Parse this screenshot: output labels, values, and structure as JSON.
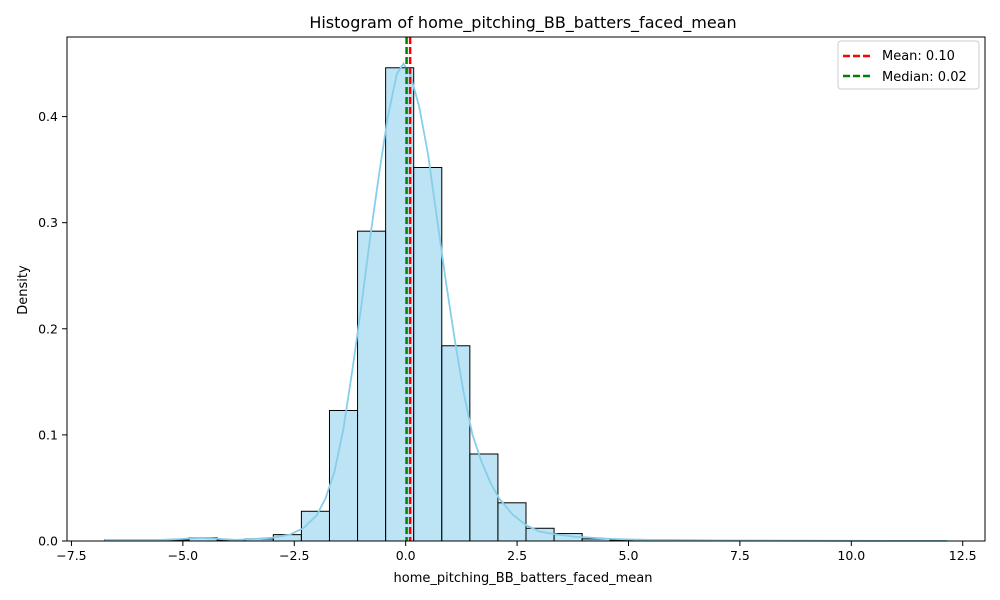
{
  "chart_data": {
    "type": "histogram",
    "title": "Histogram of home_pitching_BB_batters_faced_mean",
    "xlabel": "home_pitching_BB_batters_faced_mean",
    "ylabel": "Density",
    "xlim": [
      -7.6,
      13.0
    ],
    "ylim": [
      0,
      0.475
    ],
    "x_ticks": [
      -7.5,
      -5.0,
      -2.5,
      0.0,
      2.5,
      5.0,
      7.5,
      10.0,
      12.5
    ],
    "x_tick_labels": [
      "−7.5",
      "−5.0",
      "−2.5",
      "0.0",
      "2.5",
      "5.0",
      "7.5",
      "10.0",
      "12.5"
    ],
    "y_ticks": [
      0.0,
      0.1,
      0.2,
      0.3,
      0.4
    ],
    "y_tick_labels": [
      "0.0",
      "0.1",
      "0.2",
      "0.3",
      "0.4"
    ],
    "bins": {
      "edges": [
        -6.75,
        -6.12,
        -5.49,
        -4.86,
        -4.23,
        -3.6,
        -2.97,
        -2.34,
        -1.71,
        -1.08,
        -0.45,
        0.18,
        0.81,
        1.44,
        2.07,
        2.7,
        3.33,
        3.96,
        4.59,
        5.22,
        5.85,
        6.48,
        7.11,
        7.74,
        8.37,
        9.0,
        9.63,
        10.26,
        10.89,
        11.52,
        12.15
      ],
      "density": [
        0.001,
        0.001,
        0.001,
        0.003,
        0.001,
        0.002,
        0.006,
        0.028,
        0.123,
        0.292,
        0.446,
        0.352,
        0.184,
        0.082,
        0.036,
        0.012,
        0.007,
        0.002,
        0.001,
        0.001,
        0.0005,
        0.0005,
        0.0003,
        0.0002,
        0.0002,
        0.0002,
        0.0001,
        0.0001,
        0.0001,
        0.0001
      ],
      "fill": "#87ceeb",
      "fill_opacity": 0.55,
      "edge_color": "#000000"
    },
    "kde": {
      "x": [
        -6.75,
        -6.0,
        -5.5,
        -5.0,
        -4.6,
        -4.2,
        -3.8,
        -3.4,
        -3.0,
        -2.6,
        -2.3,
        -2.0,
        -1.8,
        -1.6,
        -1.4,
        -1.2,
        -1.0,
        -0.8,
        -0.6,
        -0.4,
        -0.2,
        -0.05,
        0.1,
        0.3,
        0.5,
        0.7,
        0.9,
        1.1,
        1.3,
        1.5,
        1.7,
        1.9,
        2.1,
        2.4,
        2.7,
        3.0,
        3.4,
        3.8,
        4.2,
        4.6,
        5.0,
        5.5,
        6.0,
        6.5,
        7.0,
        8.0,
        9.0,
        10.0,
        11.0,
        12.15
      ],
      "y": [
        0.001,
        0.001,
        0.001,
        0.002,
        0.003,
        0.002,
        0.001,
        0.002,
        0.003,
        0.006,
        0.012,
        0.024,
        0.04,
        0.065,
        0.105,
        0.16,
        0.22,
        0.285,
        0.345,
        0.4,
        0.44,
        0.45,
        0.44,
        0.41,
        0.365,
        0.305,
        0.245,
        0.19,
        0.14,
        0.1,
        0.075,
        0.055,
        0.04,
        0.025,
        0.015,
        0.009,
        0.006,
        0.004,
        0.003,
        0.002,
        0.0015,
        0.001,
        0.001,
        0.0008,
        0.0006,
        0.0004,
        0.0003,
        0.0002,
        0.0001,
        0.0001
      ],
      "color": "#87ceeb"
    },
    "reference_lines": [
      {
        "name": "Mean: 0.10",
        "x": 0.1,
        "color": "#ff0000",
        "style": "dashed"
      },
      {
        "name": "Median: 0.02",
        "x": 0.02,
        "color": "#008000",
        "style": "dashed"
      }
    ],
    "legend_position": "top-right"
  }
}
